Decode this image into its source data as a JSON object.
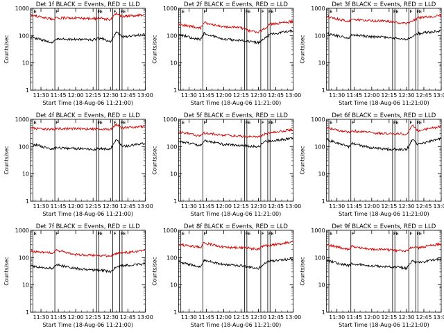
{
  "figure": {
    "description_colors": {
      "events": "#000000",
      "lld": "#d10000",
      "axes": "#000000",
      "background": "#ffffff"
    }
  },
  "chart_data": [
    {
      "type": "line",
      "title": "Det 1f BLACK = Events, RED = LLD",
      "xlabel": "Start Time (18-Aug-06 11:21:00)",
      "ylabel": "Counts/sec",
      "yscale": "log",
      "ylim": [
        1,
        1000
      ],
      "xlim": [
        "11:21",
        "13:00"
      ],
      "x_ticks": [
        "11:30",
        "11:45",
        "12:00",
        "12:15",
        "12:30",
        "12:45",
        "13:00"
      ],
      "y_ticks": [
        "1",
        "10",
        "100",
        "1000"
      ],
      "markers": [
        {
          "label": "E",
          "time": "11:23"
        },
        {
          "label": "F",
          "time": "11:42"
        },
        {
          "label": "F",
          "time": "12:18"
        },
        {
          "label": "E",
          "time": "12:20"
        },
        {
          "label": "F",
          "time": "12:32"
        },
        {
          "label": "F",
          "time": "12:38"
        },
        {
          "label": "E",
          "time": "12:40"
        }
      ],
      "series": [
        {
          "name": "LLD",
          "color": "#d10000",
          "times": [
            "11:21",
            "11:40",
            "11:43",
            "12:00",
            "12:15",
            "12:22",
            "12:30",
            "12:35",
            "12:40",
            "13:00"
          ],
          "values": [
            560,
            400,
            450,
            440,
            420,
            430,
            380,
            650,
            500,
            580
          ]
        },
        {
          "name": "Events",
          "color": "#000000",
          "times": [
            "11:21",
            "11:40",
            "11:43",
            "12:00",
            "12:15",
            "12:22",
            "12:30",
            "12:35",
            "12:40",
            "13:00"
          ],
          "values": [
            90,
            55,
            75,
            72,
            70,
            80,
            60,
            140,
            90,
            110
          ]
        }
      ]
    },
    {
      "type": "line",
      "title": "Det 2f BLACK = Events, RED = LLD",
      "xlabel": "Start Time (18-Aug-06 11:21:00)",
      "ylabel": "Counts/sec",
      "yscale": "log",
      "ylim": [
        1,
        1000
      ],
      "xlim": [
        "11:21",
        "13:00"
      ],
      "x_ticks": [
        "11:30",
        "11:45",
        "12:00",
        "12:15",
        "12:30",
        "12:45",
        "13:00"
      ],
      "y_ticks": [
        "1",
        "10",
        "100",
        "1000"
      ],
      "markers": [
        {
          "label": "E",
          "time": "11:23"
        },
        {
          "label": "F",
          "time": "11:42"
        },
        {
          "label": "F",
          "time": "12:18"
        },
        {
          "label": "E",
          "time": "12:20"
        },
        {
          "label": "F",
          "time": "12:32"
        },
        {
          "label": "F",
          "time": "12:38"
        },
        {
          "label": "E",
          "time": "12:40"
        }
      ],
      "series": [
        {
          "name": "LLD",
          "color": "#d10000",
          "times": [
            "11:21",
            "11:40",
            "11:43",
            "12:00",
            "12:15",
            "12:22",
            "12:30",
            "12:35",
            "12:40",
            "13:00"
          ],
          "values": [
            260,
            190,
            300,
            210,
            190,
            150,
            130,
            180,
            260,
            330
          ]
        },
        {
          "name": "Events",
          "color": "#000000",
          "times": [
            "11:21",
            "11:40",
            "11:43",
            "12:00",
            "12:15",
            "12:22",
            "12:30",
            "12:35",
            "12:40",
            "13:00"
          ],
          "values": [
            110,
            70,
            120,
            75,
            65,
            60,
            55,
            75,
            110,
            150
          ]
        }
      ]
    },
    {
      "type": "line",
      "title": "Det 3f BLACK = Events, RED = LLD",
      "xlabel": "Start Time (18-Aug-06 11:21:00)",
      "ylabel": "Counts/sec",
      "yscale": "log",
      "ylim": [
        1,
        1000
      ],
      "xlim": [
        "11:21",
        "13:00"
      ],
      "x_ticks": [
        "11:30",
        "11:45",
        "12:00",
        "12:15",
        "12:30",
        "12:45",
        "13:00"
      ],
      "y_ticks": [
        "1",
        "10",
        "100",
        "1000"
      ],
      "markers": [
        {
          "label": "E",
          "time": "11:23"
        },
        {
          "label": "F",
          "time": "11:42"
        },
        {
          "label": "F",
          "time": "12:18"
        },
        {
          "label": "E",
          "time": "12:20"
        },
        {
          "label": "F",
          "time": "12:32"
        },
        {
          "label": "F",
          "time": "12:38"
        },
        {
          "label": "E",
          "time": "12:40"
        }
      ],
      "series": [
        {
          "name": "LLD",
          "color": "#d10000",
          "times": [
            "11:21",
            "11:40",
            "11:43",
            "12:00",
            "12:15",
            "12:22",
            "12:30",
            "12:35",
            "12:40",
            "13:00"
          ],
          "values": [
            500,
            330,
            400,
            350,
            330,
            300,
            280,
            350,
            450,
            550
          ]
        },
        {
          "name": "Events",
          "color": "#000000",
          "times": [
            "11:21",
            "11:40",
            "11:43",
            "12:00",
            "12:15",
            "12:22",
            "12:30",
            "12:35",
            "12:40",
            "13:00"
          ],
          "values": [
            120,
            80,
            110,
            90,
            85,
            80,
            70,
            90,
            120,
            150
          ]
        }
      ]
    },
    {
      "type": "line",
      "title": "Det 4f BLACK = Events, RED = LLD",
      "xlabel": "Start Time (18-Aug-06 11:21:00)",
      "ylabel": "Counts/sec",
      "yscale": "log",
      "ylim": [
        1,
        1000
      ],
      "xlim": [
        "11:21",
        "13:00"
      ],
      "x_ticks": [
        "11:30",
        "11:45",
        "12:00",
        "12:15",
        "12:30",
        "12:45",
        "13:00"
      ],
      "y_ticks": [
        "1",
        "10",
        "100",
        "1000"
      ],
      "markers": [
        {
          "label": "E",
          "time": "11:23"
        },
        {
          "label": "F",
          "time": "11:42"
        },
        {
          "label": "F",
          "time": "12:18"
        },
        {
          "label": "E",
          "time": "12:20"
        },
        {
          "label": "F",
          "time": "12:32"
        },
        {
          "label": "F",
          "time": "12:38"
        },
        {
          "label": "E",
          "time": "12:40"
        }
      ],
      "series": [
        {
          "name": "LLD",
          "color": "#d10000",
          "times": [
            "11:21",
            "11:40",
            "11:43",
            "12:00",
            "12:15",
            "12:22",
            "12:30",
            "12:35",
            "12:40",
            "13:00"
          ],
          "values": [
            480,
            420,
            460,
            450,
            440,
            440,
            420,
            650,
            480,
            560
          ]
        },
        {
          "name": "Events",
          "color": "#000000",
          "times": [
            "11:21",
            "11:40",
            "11:43",
            "12:00",
            "12:15",
            "12:22",
            "12:30",
            "12:35",
            "12:40",
            "13:00"
          ],
          "values": [
            130,
            80,
            90,
            85,
            80,
            85,
            80,
            190,
            100,
            130
          ]
        }
      ]
    },
    {
      "type": "line",
      "title": "Det 5f BLACK = Events, RED = LLD",
      "xlabel": "Start Time (18-Aug-06 11:21:00)",
      "ylabel": "Counts/sec",
      "yscale": "log",
      "ylim": [
        1,
        1000
      ],
      "xlim": [
        "11:21",
        "13:00"
      ],
      "x_ticks": [
        "11:30",
        "11:45",
        "12:00",
        "12:15",
        "12:30",
        "12:45",
        "13:00"
      ],
      "y_ticks": [
        "1",
        "10",
        "100",
        "1000"
      ],
      "markers": [
        {
          "label": "E",
          "time": "11:23"
        },
        {
          "label": "F",
          "time": "11:42"
        },
        {
          "label": "F",
          "time": "12:18"
        },
        {
          "label": "E",
          "time": "12:20"
        },
        {
          "label": "F",
          "time": "12:32"
        },
        {
          "label": "F",
          "time": "12:38"
        },
        {
          "label": "E",
          "time": "12:40"
        }
      ],
      "series": [
        {
          "name": "LLD",
          "color": "#d10000",
          "times": [
            "11:21",
            "11:40",
            "11:43",
            "12:00",
            "12:15",
            "12:22",
            "12:30",
            "12:35",
            "12:40",
            "13:00"
          ],
          "values": [
            350,
            250,
            320,
            260,
            240,
            230,
            220,
            280,
            330,
            420
          ]
        },
        {
          "name": "Events",
          "color": "#000000",
          "times": [
            "11:21",
            "11:40",
            "11:43",
            "12:00",
            "12:15",
            "12:22",
            "12:30",
            "12:35",
            "12:40",
            "13:00"
          ],
          "values": [
            160,
            110,
            170,
            120,
            110,
            105,
            100,
            150,
            160,
            200
          ]
        }
      ]
    },
    {
      "type": "line",
      "title": "Det 6f BLACK = Events, RED = LLD",
      "xlabel": "Start Time (18-Aug-06 11:21:00)",
      "ylabel": "Counts/sec",
      "yscale": "log",
      "ylim": [
        1,
        1000
      ],
      "xlim": [
        "11:21",
        "13:00"
      ],
      "x_ticks": [
        "11:30",
        "11:45",
        "12:00",
        "12:15",
        "12:30",
        "12:45",
        "13:00"
      ],
      "y_ticks": [
        "1",
        "10",
        "100",
        "1000"
      ],
      "markers": [
        {
          "label": "E",
          "time": "11:23"
        },
        {
          "label": "F",
          "time": "11:42"
        },
        {
          "label": "F",
          "time": "12:18"
        },
        {
          "label": "E",
          "time": "12:20"
        },
        {
          "label": "F",
          "time": "12:32"
        },
        {
          "label": "F",
          "time": "12:38"
        },
        {
          "label": "E",
          "time": "12:40"
        }
      ],
      "series": [
        {
          "name": "LLD",
          "color": "#d10000",
          "times": [
            "11:21",
            "11:40",
            "11:43",
            "12:00",
            "12:15",
            "12:22",
            "12:30",
            "12:35",
            "12:40",
            "13:00"
          ],
          "values": [
            500,
            330,
            380,
            320,
            300,
            300,
            280,
            600,
            380,
            550
          ]
        },
        {
          "name": "Events",
          "color": "#000000",
          "times": [
            "11:21",
            "11:40",
            "11:43",
            "12:00",
            "12:15",
            "12:22",
            "12:30",
            "12:35",
            "12:40",
            "13:00"
          ],
          "values": [
            180,
            100,
            130,
            90,
            80,
            80,
            75,
            180,
            120,
            200
          ]
        }
      ]
    },
    {
      "type": "line",
      "title": "Det 7f BLACK = Events, RED = LLD",
      "xlabel": "Start Time (18-Aug-06 11:21:00)",
      "ylabel": "Counts/sec",
      "yscale": "log",
      "ylim": [
        1,
        1000
      ],
      "xlim": [
        "11:21",
        "13:00"
      ],
      "x_ticks": [
        "11:30",
        "11:45",
        "12:00",
        "12:15",
        "12:30",
        "12:45",
        "13:00"
      ],
      "y_ticks": [
        "1",
        "10",
        "100",
        "1000"
      ],
      "markers": [
        {
          "label": "E",
          "time": "11:23"
        },
        {
          "label": "F",
          "time": "11:42"
        },
        {
          "label": "F",
          "time": "12:18"
        },
        {
          "label": "E",
          "time": "12:20"
        },
        {
          "label": "F",
          "time": "12:32"
        },
        {
          "label": "F",
          "time": "12:38"
        },
        {
          "label": "E",
          "time": "12:40"
        }
      ],
      "series": [
        {
          "name": "LLD",
          "color": "#d10000",
          "times": [
            "11:21",
            "11:40",
            "11:43",
            "12:00",
            "12:15",
            "12:22",
            "12:30",
            "12:35",
            "12:40",
            "13:00"
          ],
          "values": [
            170,
            150,
            190,
            130,
            120,
            120,
            110,
            140,
            150,
            180
          ]
        },
        {
          "name": "Events",
          "color": "#000000",
          "times": [
            "11:21",
            "11:40",
            "11:43",
            "12:00",
            "12:15",
            "12:22",
            "12:30",
            "12:35",
            "12:40",
            "13:00"
          ],
          "values": [
            50,
            40,
            55,
            40,
            35,
            35,
            30,
            45,
            50,
            60
          ]
        }
      ]
    },
    {
      "type": "line",
      "title": "Det 8f BLACK = Events, RED = LLD",
      "xlabel": "Start Time (18-Aug-06 11:21:00)",
      "ylabel": "Counts/sec",
      "yscale": "log",
      "ylim": [
        1,
        1000
      ],
      "xlim": [
        "11:21",
        "13:00"
      ],
      "x_ticks": [
        "11:30",
        "11:45",
        "12:00",
        "12:15",
        "12:30",
        "12:45",
        "13:00"
      ],
      "y_ticks": [
        "1",
        "10",
        "100",
        "1000"
      ],
      "markers": [
        {
          "label": "E",
          "time": "11:23"
        },
        {
          "label": "F",
          "time": "11:42"
        },
        {
          "label": "F",
          "time": "12:18"
        },
        {
          "label": "E",
          "time": "12:20"
        },
        {
          "label": "F",
          "time": "12:32"
        },
        {
          "label": "F",
          "time": "12:38"
        },
        {
          "label": "E",
          "time": "12:40"
        }
      ],
      "series": [
        {
          "name": "LLD",
          "color": "#d10000",
          "times": [
            "11:21",
            "11:40",
            "11:43",
            "12:00",
            "12:15",
            "12:22",
            "12:30",
            "12:35",
            "12:40",
            "13:00"
          ],
          "values": [
            300,
            240,
            350,
            240,
            230,
            220,
            200,
            280,
            280,
            380
          ]
        },
        {
          "name": "Events",
          "color": "#000000",
          "times": [
            "11:21",
            "11:40",
            "11:43",
            "12:00",
            "12:15",
            "12:22",
            "12:30",
            "12:35",
            "12:40",
            "13:00"
          ],
          "values": [
            70,
            45,
            80,
            55,
            50,
            45,
            40,
            60,
            75,
            90
          ]
        }
      ]
    },
    {
      "type": "line",
      "title": "Det 9f BLACK = Events, RED = LLD",
      "xlabel": "Start Time (18-Aug-06 11:21:00)",
      "ylabel": "Counts/sec",
      "yscale": "log",
      "ylim": [
        1,
        1000
      ],
      "xlim": [
        "11:21",
        "13:00"
      ],
      "x_ticks": [
        "11:30",
        "11:45",
        "12:00",
        "12:15",
        "12:30",
        "12:45",
        "13:00"
      ],
      "y_ticks": [
        "1",
        "10",
        "100",
        "1000"
      ],
      "markers": [
        {
          "label": "E",
          "time": "11:23"
        },
        {
          "label": "F",
          "time": "11:42"
        },
        {
          "label": "F",
          "time": "12:18"
        },
        {
          "label": "E",
          "time": "12:20"
        },
        {
          "label": "F",
          "time": "12:32"
        },
        {
          "label": "F",
          "time": "12:38"
        },
        {
          "label": "E",
          "time": "12:40"
        }
      ],
      "series": [
        {
          "name": "LLD",
          "color": "#d10000",
          "times": [
            "11:21",
            "11:40",
            "11:43",
            "12:00",
            "12:15",
            "12:22",
            "12:30",
            "12:35",
            "12:40",
            "13:00"
          ],
          "values": [
            300,
            200,
            260,
            200,
            190,
            180,
            170,
            250,
            230,
            320
          ]
        },
        {
          "name": "Events",
          "color": "#000000",
          "times": [
            "11:21",
            "11:40",
            "11:43",
            "12:00",
            "12:15",
            "12:22",
            "12:30",
            "12:35",
            "12:40",
            "13:00"
          ],
          "values": [
            80,
            50,
            60,
            50,
            45,
            45,
            40,
            75,
            65,
            90
          ]
        }
      ]
    }
  ]
}
